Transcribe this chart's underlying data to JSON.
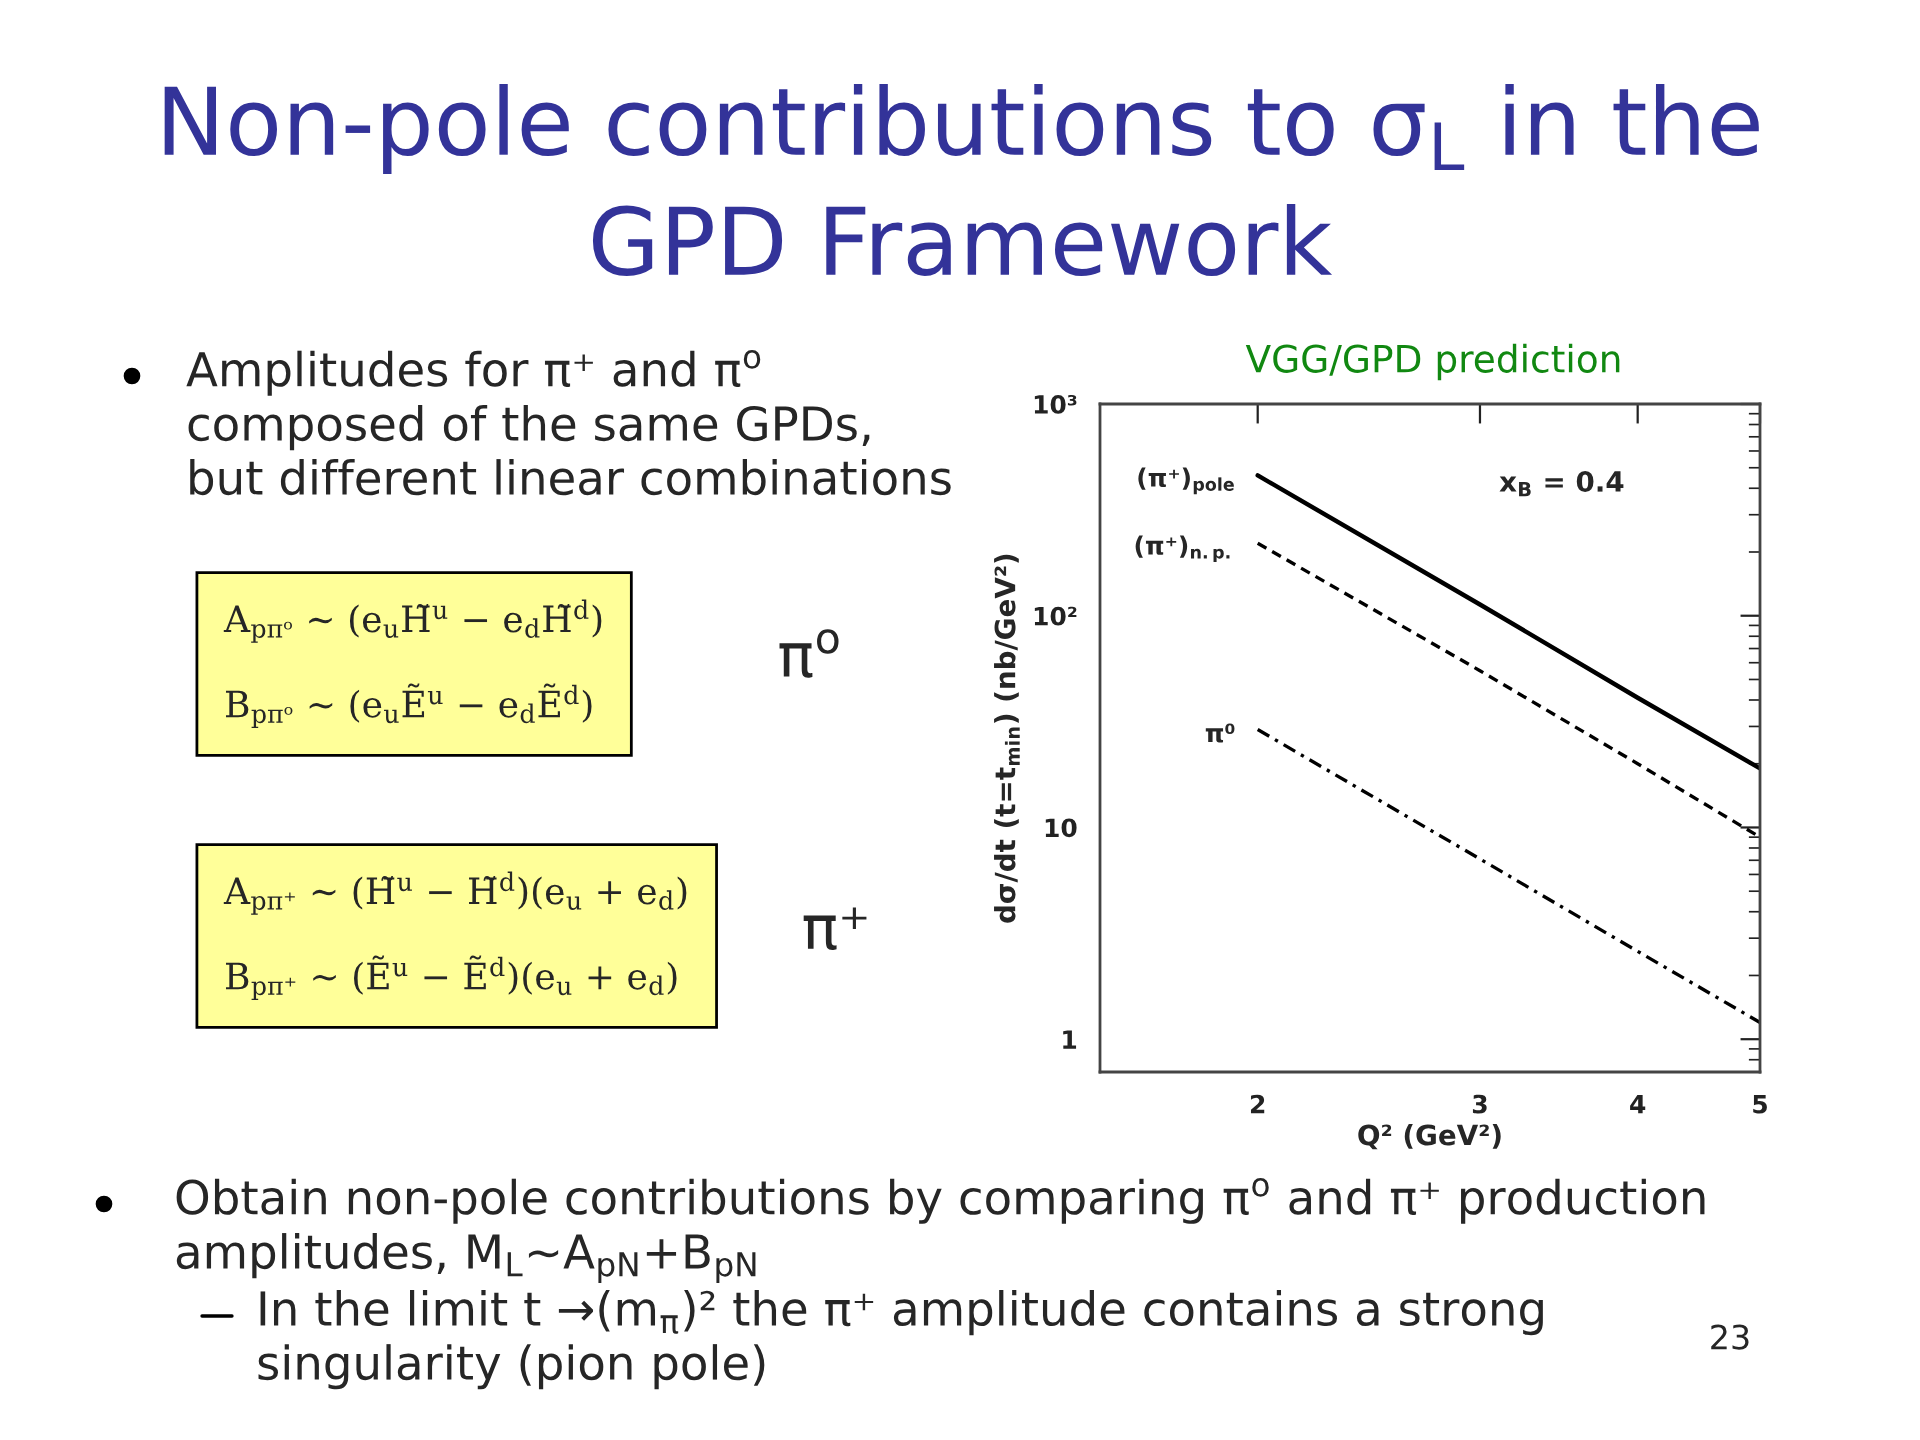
{
  "chart_data": {
    "type": "line",
    "title": "Non-pole contributions to σ$_{L}$ in the\nGPD Framework",
    "subtitle": "VGG/GPD prediction",
    "xlabel": "Q² (GeV²)",
    "ylabel": "dσ/dt (t=t$_{min}$) (nb/GeV²)",
    "log": "xy",
    "x": [
      2,
      3,
      4,
      5
    ],
    "xlim": [
      1.5,
      5
    ],
    "xticks": [
      2,
      3,
      4,
      5
    ],
    "ylim": [
      0.7,
      1000
    ],
    "yticks": [
      1,
      10,
      {
        "value": 100,
        "label": "10²"
      },
      {
        "value": 1000,
        "label": "10³"
      }
    ],
    "series": [
      {
        "name": "(π⁺)$_{pole}$",
        "color": "#000000",
        "line_style": "solid",
        "values": [
          460,
          113,
          41,
          19
        ]
      },
      {
        "name": "(π⁺)$_{n.p.}$",
        "color": "#000000",
        "line_style": "dashed",
        "values": [
          220,
          55,
          20,
          9
        ]
      },
      {
        "name": "π⁰",
        "color": "#000000",
        "line_style": "dashdot",
        "values": [
          29,
          7.1,
          2.6,
          1.2
        ]
      }
    ],
    "annotations": [
      "x$_{B}$ = 0.4",
      "Amplitudes for π⁺ and π$^{o}$\ncomposed of the same GPDs,\nbut different linear combinations",
      "A$_{pπᵒ}$ ∼ (e$_{u}$H̃$^{u}$ − e$_{d}$H̃$^{d}$)\nB$_{pπᵒ}$ ∼ (e$_{u}$Ẽ$^{u}$ − e$_{d}$Ẽ$^{d}$)",
      "π$^{o}$",
      "A$_{pπ⁺}$ ∼ (H̃$^{u}$ − H̃$^{d}$)(e$_{u}$ + e$_{d}$)\nB$_{pπ⁺}$ ∼ (Ẽ$^{u}$ − Ẽ$^{d}$)(e$_{u}$ + e$_{d}$)",
      "π⁺",
      "Obtain non-pole contributions by comparing π$^{o}$ and π⁺ production\namplitudes, M$_{L}$~A$_{pN}$+B$_{pN}$",
      "In the limit t →(m$_{π}$)² the π⁺ amplitude contains a strong\nsingularity (pion pole)",
      "23"
    ]
  }
}
